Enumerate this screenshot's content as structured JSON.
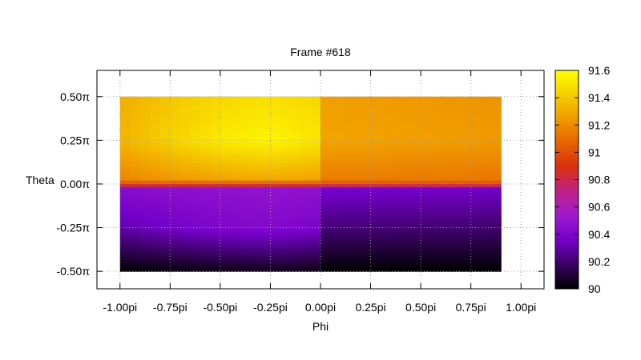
{
  "chart_data": {
    "type": "heatmap",
    "title": "Frame #618",
    "xlabel": "Phi",
    "ylabel": "Theta",
    "xlim": [
      -1.115,
      1.115
    ],
    "ylim": [
      -0.6,
      0.65
    ],
    "x_ticks": [
      {
        "value": -1.0,
        "label": "-1.00pi"
      },
      {
        "value": -0.75,
        "label": "-0.75pi"
      },
      {
        "value": -0.5,
        "label": "-0.50pi"
      },
      {
        "value": -0.25,
        "label": "-0.25pi"
      },
      {
        "value": 0.0,
        "label": "0.00pi"
      },
      {
        "value": 0.25,
        "label": "0.25pi"
      },
      {
        "value": 0.5,
        "label": "0.50pi"
      },
      {
        "value": 0.75,
        "label": "0.75pi"
      },
      {
        "value": 1.0,
        "label": "1.00pi"
      }
    ],
    "y_ticks": [
      {
        "value": 0.5,
        "label": "0.50π"
      },
      {
        "value": 0.25,
        "label": "0.25π"
      },
      {
        "value": 0.0,
        "label": "0.00π"
      },
      {
        "value": -0.25,
        "label": "-0.25π"
      },
      {
        "value": -0.5,
        "label": "-0.50π"
      }
    ],
    "grid": true,
    "data_extent": {
      "phi": [
        -1.0,
        0.9
      ],
      "theta": [
        -0.5,
        0.5
      ]
    },
    "colorbar": {
      "min": 90,
      "max": 91.6,
      "ticks": [
        {
          "value": 90,
          "label": "90"
        },
        {
          "value": 90.2,
          "label": "90.2"
        },
        {
          "value": 90.4,
          "label": "90.4"
        },
        {
          "value": 90.6,
          "label": "90.6"
        },
        {
          "value": 90.8,
          "label": "90.8"
        },
        {
          "value": 91,
          "label": "91"
        },
        {
          "value": 91.2,
          "label": "91.2"
        },
        {
          "value": 91.4,
          "label": "91.4"
        },
        {
          "value": 91.6,
          "label": "91.6"
        }
      ],
      "palette": [
        "#000000",
        "#3a0063",
        "#7400c8",
        "#9d1ad0",
        "#c0208a",
        "#d92f10",
        "#e66300",
        "#f09a00",
        "#f6cf00",
        "#ffff00"
      ]
    },
    "grid_values": {
      "phi": [
        -1.0,
        -0.75,
        -0.5,
        -0.25,
        0.0,
        0.0001,
        0.25,
        0.5,
        0.75,
        0.9
      ],
      "theta": [
        0.5,
        0.25,
        0.03,
        0.0,
        -0.03,
        -0.25,
        -0.5
      ],
      "z": [
        [
          91.31,
          91.39,
          91.45,
          91.48,
          91.45,
          91.26,
          91.25,
          91.24,
          91.23,
          91.22
        ],
        [
          91.33,
          91.43,
          91.52,
          91.56,
          91.5,
          91.28,
          91.27,
          91.26,
          91.25,
          91.24
        ],
        [
          91.18,
          91.24,
          91.28,
          91.3,
          91.28,
          91.15,
          91.15,
          91.14,
          91.14,
          91.13
        ],
        [
          91.0,
          91.0,
          91.0,
          91.0,
          91.0,
          91.0,
          91.0,
          91.0,
          91.0,
          91.0
        ],
        [
          90.44,
          90.46,
          90.47,
          90.48,
          90.47,
          90.37,
          90.37,
          90.36,
          90.36,
          90.35
        ],
        [
          90.3,
          90.36,
          90.4,
          90.42,
          90.38,
          90.21,
          90.21,
          90.2,
          90.2,
          90.19
        ],
        [
          90.0,
          90.02,
          90.04,
          90.05,
          90.04,
          90.0,
          90.0,
          90.0,
          90.0,
          90.0
        ]
      ]
    }
  }
}
